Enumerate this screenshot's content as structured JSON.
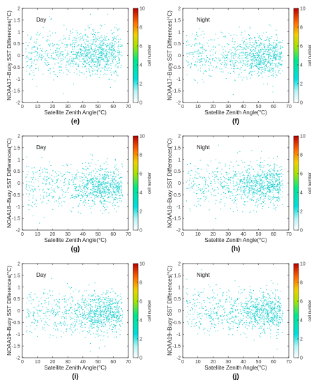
{
  "chart_data": [
    {
      "type": "heatmap",
      "caption": "(e)",
      "panel_label": "Day",
      "ylabel": "NOAA17–Buoy SST Differences(°C)",
      "xlabel": "Satellite Zenith Angle(°C)",
      "xlim": [
        0,
        70
      ],
      "ylim": [
        -2,
        2
      ],
      "xticks": [
        0,
        10,
        20,
        30,
        40,
        50,
        60,
        70
      ],
      "yticks": [
        -2,
        -1.5,
        -1,
        -0.5,
        0,
        0.5,
        1,
        1.5,
        2
      ],
      "colorbar": {
        "label": "cell number",
        "range": [
          0,
          10
        ],
        "ticks": [
          0,
          2,
          4,
          6,
          8,
          10
        ]
      },
      "density": {
        "center_x": 50,
        "center_y": 0.15,
        "spread_x": 12,
        "spread_y": 0.45
      }
    },
    {
      "type": "heatmap",
      "caption": "(f)",
      "panel_label": "Night",
      "ylabel": "NOAA17–Buoy SST Differences(°C)",
      "xlabel": "Satellite Zenith Angle(°C)",
      "xlim": [
        0,
        70
      ],
      "ylim": [
        -2,
        2
      ],
      "xticks": [
        0,
        10,
        20,
        30,
        40,
        50,
        60,
        70
      ],
      "yticks": [
        -2,
        -1.5,
        -1,
        -0.5,
        0,
        0.5,
        1,
        1.5,
        2
      ],
      "colorbar": {
        "label": "cell number",
        "range": [
          0,
          10
        ],
        "ticks": [
          0,
          2,
          4,
          6,
          8,
          10
        ]
      },
      "density": {
        "center_x": 55,
        "center_y": 0.0,
        "spread_x": 11,
        "spread_y": 0.4
      }
    },
    {
      "type": "heatmap",
      "caption": "(g)",
      "panel_label": "Day",
      "ylabel": "NOAA18–Buoy SST Differences(°C)",
      "xlabel": "Satellite Zenith Angle(°C)",
      "xlim": [
        0,
        70
      ],
      "ylim": [
        -2,
        2
      ],
      "xticks": [
        0,
        10,
        20,
        30,
        40,
        50,
        60,
        70
      ],
      "yticks": [
        -2,
        -1.5,
        -1,
        -0.5,
        0,
        0.5,
        1,
        1.5,
        2
      ],
      "colorbar": {
        "label": "cell number",
        "range": [
          0,
          10
        ],
        "ticks": [
          0,
          2,
          4,
          6,
          8,
          10
        ]
      },
      "density": {
        "center_x": 55,
        "center_y": -0.15,
        "spread_x": 11,
        "spread_y": 0.42
      }
    },
    {
      "type": "heatmap",
      "caption": "(h)",
      "panel_label": "Night",
      "ylabel": "NOAA18–Buoy SST Differences(°C)",
      "xlabel": "Satellite Zenith Angle(°C)",
      "xlim": [
        0,
        70
      ],
      "ylim": [
        -2,
        2
      ],
      "xticks": [
        0,
        10,
        20,
        30,
        40,
        50,
        60,
        70
      ],
      "yticks": [
        -2,
        -1.5,
        -1,
        -0.5,
        0,
        0.5,
        1,
        1.5,
        2
      ],
      "colorbar": {
        "label": "cell number",
        "range": [
          0,
          10
        ],
        "ticks": [
          0,
          2,
          4,
          6,
          8,
          10
        ]
      },
      "density": {
        "center_x": 56,
        "center_y": -0.05,
        "spread_x": 11,
        "spread_y": 0.4
      }
    },
    {
      "type": "heatmap",
      "caption": "(i)",
      "panel_label": "Day",
      "ylabel": "NOAA19–Buoy SST Differences(°C)",
      "xlabel": "Satellite Zenith Angle(°C)",
      "xlim": [
        0,
        70
      ],
      "ylim": [
        -2,
        2
      ],
      "xticks": [
        0,
        10,
        20,
        30,
        40,
        50,
        60,
        70
      ],
      "yticks": [
        -2,
        -1.5,
        -1,
        -0.5,
        0,
        0.5,
        1,
        1.5,
        2
      ],
      "colorbar": {
        "label": "cell number",
        "range": [
          0,
          10
        ],
        "ticks": [
          0,
          2,
          4,
          6,
          8,
          10
        ]
      },
      "density": {
        "center_x": 55,
        "center_y": -0.1,
        "spread_x": 11,
        "spread_y": 0.42
      }
    },
    {
      "type": "heatmap",
      "caption": "(j)",
      "panel_label": "Night",
      "ylabel": "NOAA19–Buoy SST Differences(°C)",
      "xlabel": "Satellite Zenith Angle(°C)",
      "xlim": [
        0,
        70
      ],
      "ylim": [
        -2,
        2
      ],
      "xticks": [
        0,
        10,
        20,
        30,
        40,
        50,
        60,
        70
      ],
      "yticks": [
        -2,
        -1.5,
        -1,
        -0.5,
        0,
        0.5,
        1,
        1.5,
        2
      ],
      "colorbar": {
        "label": "cell number",
        "range": [
          0,
          10
        ],
        "ticks": [
          0,
          2,
          4,
          6,
          8,
          10
        ]
      },
      "density": {
        "center_x": 55,
        "center_y": -0.05,
        "spread_x": 11,
        "spread_y": 0.42
      }
    }
  ],
  "colors": {
    "point": "#27d3d3",
    "colormap": [
      "#ffffff",
      "#00e0e0",
      "#00ff80",
      "#e0e000",
      "#ff8000",
      "#c00000"
    ],
    "axis": "#000000"
  }
}
